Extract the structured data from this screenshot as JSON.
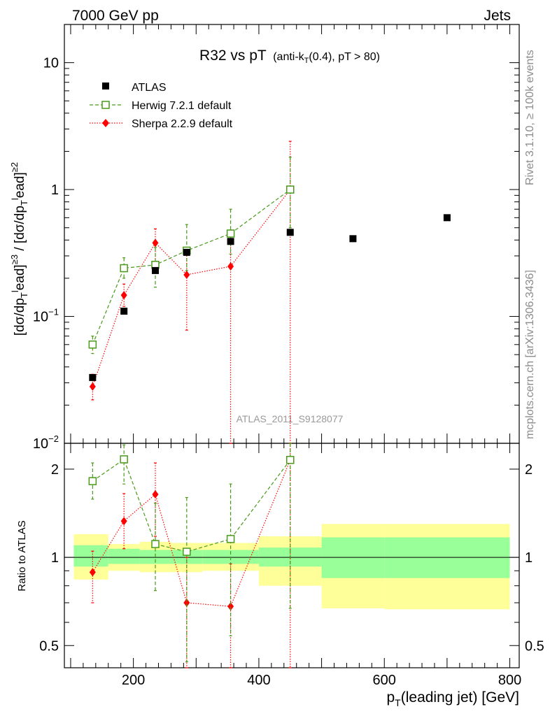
{
  "header": {
    "left": "7000 GeV pp",
    "right": "Jets"
  },
  "side_labels": {
    "top": "Rivet 3.1.10, ≥ 100k events",
    "bottom": "mcplots.cern.ch [arXiv:1306.3436]"
  },
  "watermark": "ATLAS_2011_S9128077",
  "title": {
    "main": "R32 vs pT",
    "sub_pre": "(anti-k",
    "sub_sub": "T",
    "sub_post": "(0.4), pT > 80)"
  },
  "colors": {
    "atlas": "#000000",
    "herwig": "#4a9a1a",
    "sherpa": "#ff0000",
    "band_inner": "#99ff99",
    "band_outer": "#ffff99"
  },
  "chart_data": [
    {
      "type": "scatter",
      "panel": "main",
      "ylabel": "[dσ/dpᵀlead]≥3 / [dσ/dpᵀlead]≥2",
      "yscale": "log",
      "ylim": [
        0.01,
        20
      ],
      "xlim": [
        90,
        815
      ],
      "yticks": [
        {
          "v": 0.01,
          "mant": "10",
          "exp": "−2"
        },
        {
          "v": 0.1,
          "mant": "10",
          "exp": "−1"
        },
        {
          "v": 1,
          "mant": "1",
          "exp": ""
        },
        {
          "v": 10,
          "mant": "10",
          "exp": ""
        }
      ],
      "legend_position": "top-left",
      "series": [
        {
          "name": "ATLAS",
          "marker": "square",
          "x": [
            135,
            185,
            235,
            285,
            355,
            450,
            550,
            700
          ],
          "y": [
            0.033,
            0.11,
            0.23,
            0.32,
            0.39,
            0.46,
            0.41,
            0.6
          ]
        },
        {
          "name": "Herwig 7.2.1 default",
          "marker": "open-square",
          "line": "dashed",
          "x": [
            135,
            185,
            235,
            285,
            355,
            450
          ],
          "y": [
            0.06,
            0.24,
            0.255,
            0.33,
            0.45,
            1.0
          ],
          "ylow": [
            0.051,
            0.2,
            0.17,
            0.23,
            0.31,
            0.5
          ],
          "yhigh": [
            0.07,
            0.29,
            0.35,
            0.53,
            0.7,
            1.8
          ]
        },
        {
          "name": "Sherpa 2.2.9 default",
          "marker": "diamond",
          "line": "dotted",
          "x": [
            135,
            185,
            235,
            285,
            355,
            450
          ],
          "y": [
            0.028,
            0.147,
            0.38,
            0.213,
            0.248,
            1.0
          ],
          "ylow": [
            0.022,
            0.12,
            0.27,
            0.078,
            0.005,
            0.005
          ],
          "yhigh": [
            0.035,
            0.18,
            0.49,
            0.33,
            0.48,
            2.4
          ]
        }
      ]
    },
    {
      "type": "scatter",
      "panel": "ratio",
      "xlabel": "p",
      "xlabel_sub": "T",
      "xlabel_post": "(leading jet) [GeV]",
      "ylabel": "Ratio to ATLAS",
      "yscale": "log",
      "ylim": [
        0.42,
        2.45
      ],
      "xlim": [
        90,
        815
      ],
      "xticks": [
        {
          "v": 200,
          "label": "200"
        },
        {
          "v": 400,
          "label": "400"
        },
        {
          "v": 600,
          "label": "600"
        },
        {
          "v": 800,
          "label": "800"
        }
      ],
      "yticks": [
        {
          "v": 0.5,
          "label": "0.5"
        },
        {
          "v": 1,
          "label": "1"
        },
        {
          "v": 2,
          "label": "2"
        }
      ],
      "bands": [
        {
          "x0": 105,
          "x1": 160,
          "inner": [
            0.93,
            1.1
          ],
          "outer": [
            0.84,
            1.2
          ]
        },
        {
          "x0": 160,
          "x1": 210,
          "inner": [
            0.95,
            1.07
          ],
          "outer": [
            0.9,
            1.11
          ]
        },
        {
          "x0": 210,
          "x1": 260,
          "inner": [
            0.95,
            1.06
          ],
          "outer": [
            0.89,
            1.13
          ]
        },
        {
          "x0": 260,
          "x1": 310,
          "inner": [
            0.95,
            1.06
          ],
          "outer": [
            0.89,
            1.12
          ]
        },
        {
          "x0": 310,
          "x1": 400,
          "inner": [
            0.95,
            1.06
          ],
          "outer": [
            0.9,
            1.12
          ]
        },
        {
          "x0": 400,
          "x1": 500,
          "inner": [
            0.93,
            1.08
          ],
          "outer": [
            0.8,
            1.18
          ]
        },
        {
          "x0": 500,
          "x1": 600,
          "inner": [
            0.85,
            1.17
          ],
          "outer": [
            0.67,
            1.3
          ]
        },
        {
          "x0": 600,
          "x1": 800,
          "inner": [
            0.85,
            1.17
          ],
          "outer": [
            0.665,
            1.3
          ]
        }
      ],
      "series": [
        {
          "name": "Herwig 7.2.1 default",
          "marker": "open-square",
          "line": "dashed",
          "x": [
            135,
            185,
            235,
            285,
            355,
            450
          ],
          "y": [
            1.82,
            2.16,
            1.11,
            1.045,
            1.155,
            2.15
          ],
          "ylow": [
            1.58,
            1.78,
            0.77,
            0.44,
            0.54,
            0.67
          ],
          "yhigh": [
            2.1,
            2.42,
            1.53,
            1.6,
            1.78,
            2.45
          ]
        },
        {
          "name": "Sherpa 2.2.9 default",
          "marker": "diamond",
          "line": "dotted",
          "x": [
            135,
            185,
            235,
            285,
            355,
            450
          ],
          "y": [
            0.89,
            1.33,
            1.64,
            0.7,
            0.68,
            2.15
          ],
          "ylow": [
            0.7,
            1.07,
            1.18,
            0.42,
            0.42,
            0.42
          ],
          "yhigh": [
            1.05,
            1.65,
            2.1,
            1.0,
            0.95,
            2.45
          ]
        }
      ]
    }
  ]
}
